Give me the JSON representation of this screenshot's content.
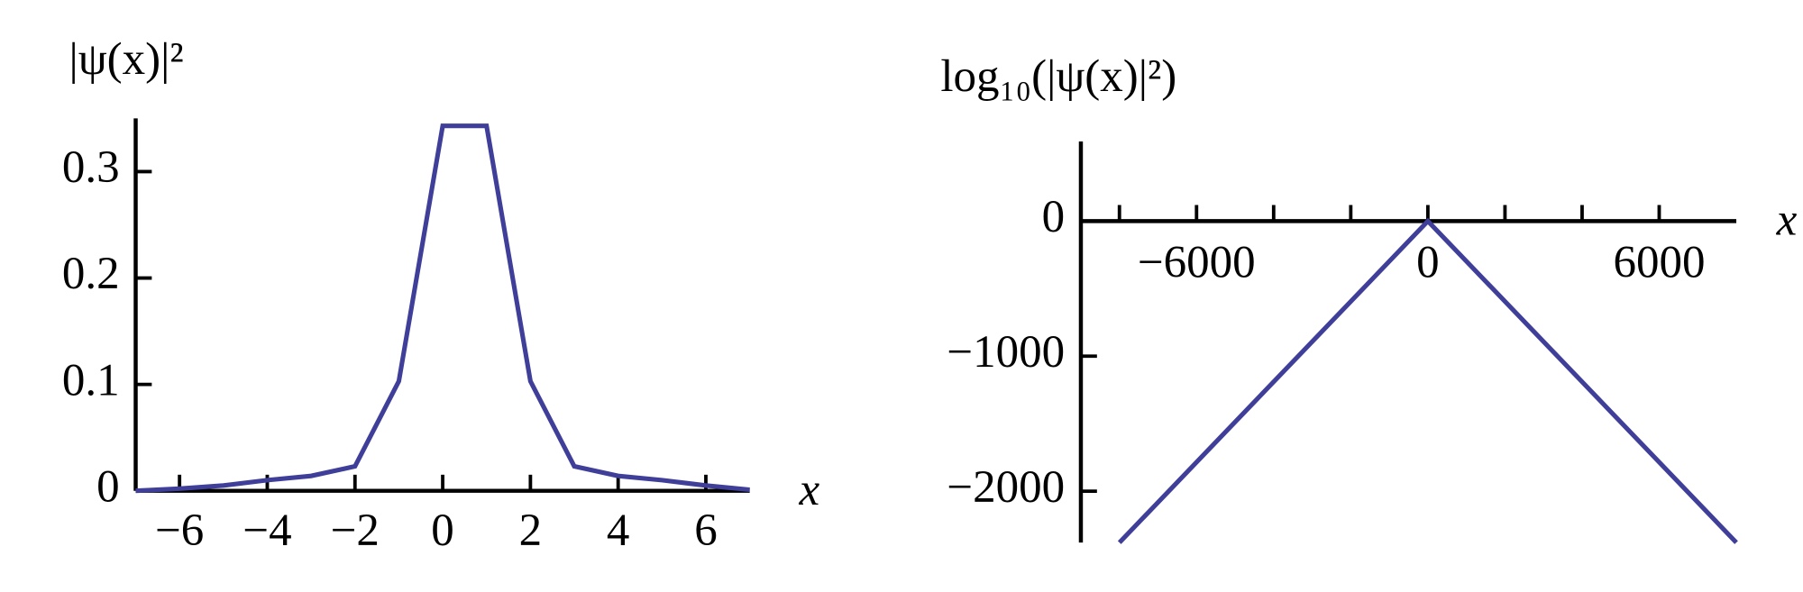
{
  "chart_data": [
    {
      "type": "line",
      "ylabel": "|ψ(x)|²",
      "xlabel": "x",
      "x": [
        -7,
        -6,
        -5,
        -4,
        -3,
        -2,
        -1,
        0,
        1,
        2,
        3,
        4,
        5,
        6,
        7
      ],
      "values": [
        0,
        0.002,
        0.005,
        0.01,
        0.014,
        0.023,
        0.103,
        0.343,
        0.343,
        0.103,
        0.023,
        0.014,
        0.01,
        0.005,
        0.001
      ],
      "color": "#3f3f9a",
      "xlim": [
        -7,
        7
      ],
      "ylim": [
        0,
        0.35
      ],
      "xticks": [
        {
          "value": -6,
          "label": "−6"
        },
        {
          "value": -4,
          "label": "−4"
        },
        {
          "value": -2,
          "label": "−2"
        },
        0,
        2,
        4,
        6
      ],
      "yticks": [
        0,
        0.1,
        0.2,
        0.3
      ]
    },
    {
      "type": "line",
      "ylabel": "log₁₀(|ψ(x)|²)",
      "xlabel": "x",
      "x": [
        -8000,
        0,
        8000
      ],
      "values": [
        -2380,
        0,
        -2380
      ],
      "color": "#3f3f9a",
      "xlim": [
        -9000,
        8000
      ],
      "ylim": [
        -2380,
        590
      ],
      "xticks": [
        {
          "value": -6000,
          "label": "−6000"
        },
        0,
        6000
      ],
      "xminor_ticks": [
        -8000,
        -4000,
        -2000,
        2000,
        4000
      ],
      "yticks": [
        0,
        {
          "value": -1000,
          "label": "−1000"
        },
        {
          "value": -2000,
          "label": "−2000"
        }
      ]
    }
  ]
}
